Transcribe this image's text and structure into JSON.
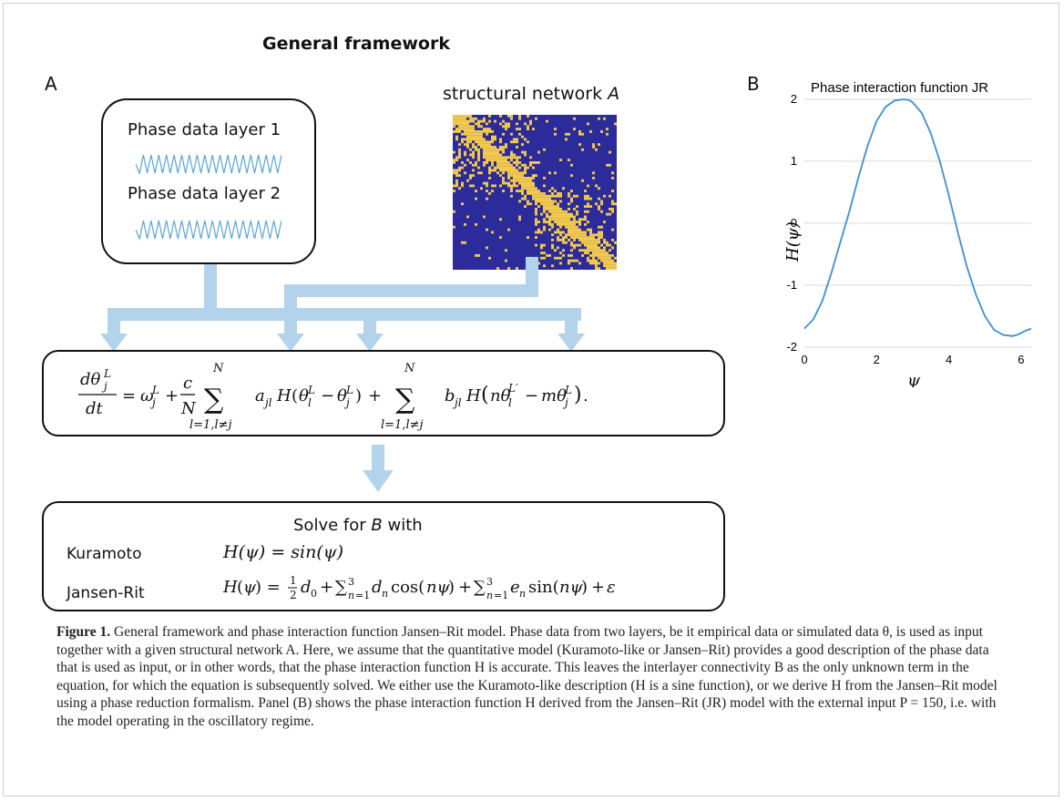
{
  "figure": {
    "title": "General framework",
    "panel_a_label": "A",
    "panel_b_label": "B",
    "phase_layer_1": "Phase data layer 1",
    "phase_layer_2": "Phase data layer 2",
    "network_label_prefix": "structural network",
    "network_label_var": "A",
    "solve_title_prefix": "Solve for",
    "solve_title_var": "B",
    "solve_title_suffix": "with",
    "model_1": "Kuramoto",
    "model_2": "Jansen-Rit",
    "formula_1": "H(ψ) = sin(ψ)",
    "arrow_color": "#b3d3ec",
    "matrix_bg": "#2b2b9b",
    "matrix_fg": "#f2c94c"
  },
  "caption": {
    "label": "Figure 1.",
    "text": "General framework and phase interaction function Jansen–Rit model. Phase data from two layers, be it empirical data or simulated data θ, is used as input together with a given structural network A. Here, we assume that the quantitative model (Kuramoto-like or Jansen–Rit) provides a good description of the phase data that is used as input, or in other words, that the phase interaction function H is accurate. This leaves the interlayer connectivity B as the only unknown term in the equation, for which the equation is subsequently solved. We either use the Kuramoto-like description (H is a sine function), or we derive H from the Jansen–Rit model using a phase reduction formalism. Panel (B) shows the phase interaction function H derived from the Jansen–Rit (JR) model with the external input P = 150, i.e. with the model operating in the oscillatory regime."
  },
  "chart_data": {
    "type": "line",
    "title": "Phase interaction function JR",
    "xlabel": "ψ",
    "ylabel": "H(ψ)",
    "xlim": [
      0,
      6.28
    ],
    "ylim": [
      -2,
      2
    ],
    "xticks": [
      "0",
      "2",
      "4",
      "6"
    ],
    "yticks": [
      "2",
      "1",
      "0",
      "-1",
      "-2"
    ],
    "grid": "horizontal",
    "color": "#3f8fd0",
    "series": [
      {
        "x": [
          0,
          0.25,
          0.5,
          0.75,
          1.0,
          1.25,
          1.5,
          1.75,
          2.0,
          2.25,
          2.5,
          2.75,
          2.9,
          3.0,
          3.25,
          3.5,
          3.75,
          4.0,
          4.25,
          4.5,
          4.75,
          5.0,
          5.25,
          5.5,
          5.75,
          5.9,
          6.0,
          6.1,
          6.28
        ],
        "y": [
          -1.7,
          -1.55,
          -1.25,
          -0.8,
          -0.3,
          0.2,
          0.75,
          1.25,
          1.65,
          1.88,
          1.98,
          2.0,
          1.99,
          1.95,
          1.78,
          1.45,
          1.0,
          0.45,
          -0.15,
          -0.7,
          -1.15,
          -1.5,
          -1.72,
          -1.8,
          -1.82,
          -1.8,
          -1.77,
          -1.74,
          -1.7
        ]
      }
    ]
  }
}
